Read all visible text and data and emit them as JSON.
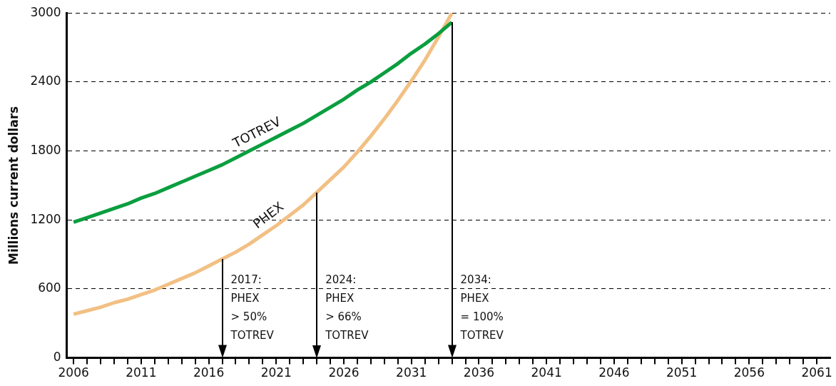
{
  "chart_data": {
    "type": "line",
    "ylabel": "Millions current dollars",
    "x": [
      2006,
      2007,
      2008,
      2009,
      2010,
      2011,
      2012,
      2013,
      2014,
      2015,
      2016,
      2017,
      2018,
      2019,
      2020,
      2021,
      2022,
      2023,
      2024,
      2025,
      2026,
      2027,
      2028,
      2029,
      2030,
      2031,
      2032,
      2033,
      2034
    ],
    "series": [
      {
        "name": "TOTREV",
        "color": "#0a9e3f",
        "values": [
          1180,
          1220,
          1260,
          1300,
          1340,
          1390,
          1430,
          1480,
          1530,
          1580,
          1630,
          1680,
          1740,
          1800,
          1860,
          1920,
          1980,
          2040,
          2110,
          2180,
          2250,
          2330,
          2400,
          2480,
          2560,
          2650,
          2730,
          2820,
          2920
        ]
      },
      {
        "name": "PHEX",
        "color": "#f2c084",
        "values": [
          380,
          410,
          440,
          480,
          510,
          550,
          590,
          640,
          690,
          740,
          800,
          860,
          920,
          990,
          1070,
          1150,
          1240,
          1330,
          1440,
          1550,
          1660,
          1790,
          1930,
          2080,
          2240,
          2410,
          2590,
          2790,
          3000
        ]
      }
    ],
    "xlim": [
      2005.5,
      2062
    ],
    "xticks": [
      2006,
      {
        "value": 2007,
        "label": null
      },
      {
        "value": 2008,
        "label": null
      },
      {
        "value": 2009,
        "label": null
      },
      {
        "value": 2010,
        "label": null
      },
      2011,
      {
        "value": 2012,
        "label": null
      },
      {
        "value": 2013,
        "label": null
      },
      {
        "value": 2014,
        "label": null
      },
      {
        "value": 2015,
        "label": null
      },
      2016,
      {
        "value": 2017,
        "label": null
      },
      {
        "value": 2018,
        "label": null
      },
      {
        "value": 2019,
        "label": null
      },
      {
        "value": 2020,
        "label": null
      },
      2021,
      {
        "value": 2022,
        "label": null
      },
      {
        "value": 2023,
        "label": null
      },
      {
        "value": 2024,
        "label": null
      },
      {
        "value": 2025,
        "label": null
      },
      2026,
      {
        "value": 2027,
        "label": null
      },
      {
        "value": 2028,
        "label": null
      },
      {
        "value": 2029,
        "label": null
      },
      {
        "value": 2030,
        "label": null
      },
      2031,
      {
        "value": 2032,
        "label": null
      },
      {
        "value": 2033,
        "label": null
      },
      {
        "value": 2034,
        "label": null
      },
      {
        "value": 2035,
        "label": null
      },
      2036,
      {
        "value": 2037,
        "label": null
      },
      {
        "value": 2038,
        "label": null
      },
      {
        "value": 2039,
        "label": null
      },
      {
        "value": 2040,
        "label": null
      },
      2041,
      {
        "value": 2042,
        "label": null
      },
      {
        "value": 2043,
        "label": null
      },
      {
        "value": 2044,
        "label": null
      },
      {
        "value": 2045,
        "label": null
      },
      2046,
      {
        "value": 2047,
        "label": null
      },
      {
        "value": 2048,
        "label": null
      },
      {
        "value": 2049,
        "label": null
      },
      {
        "value": 2050,
        "label": null
      },
      2051,
      {
        "value": 2052,
        "label": null
      },
      {
        "value": 2053,
        "label": null
      },
      {
        "value": 2054,
        "label": null
      },
      {
        "value": 2055,
        "label": null
      },
      2056,
      {
        "value": 2057,
        "label": null
      },
      {
        "value": 2058,
        "label": null
      },
      {
        "value": 2059,
        "label": null
      },
      {
        "value": 2060,
        "label": null
      },
      2061
    ],
    "ylim": [
      0,
      3000
    ],
    "yticks": [
      0,
      600,
      1200,
      1800,
      2400,
      3000
    ],
    "grid": "y",
    "legend": false,
    "marker": "none",
    "line_style": "solid",
    "annotations": [
      {
        "text": "2017:\nPHEX\n> 50%\nTOTREV",
        "x": 2017,
        "y": 860
      },
      {
        "text": "2024:\nPHEX\n> 66%\nTOTREV",
        "x": 2024,
        "y": 1440
      },
      {
        "text": "2034:\nPHEX\n= 100%\nTOTREV",
        "x": 2034,
        "y": 2920
      }
    ]
  }
}
